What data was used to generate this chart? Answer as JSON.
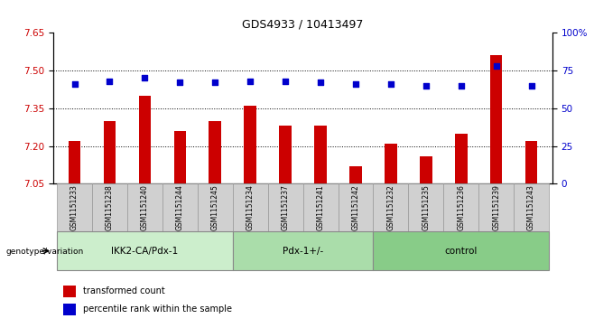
{
  "title": "GDS4933 / 10413497",
  "samples": [
    "GSM1151233",
    "GSM1151238",
    "GSM1151240",
    "GSM1151244",
    "GSM1151245",
    "GSM1151234",
    "GSM1151237",
    "GSM1151241",
    "GSM1151242",
    "GSM1151232",
    "GSM1151235",
    "GSM1151236",
    "GSM1151239",
    "GSM1151243"
  ],
  "bar_values": [
    7.22,
    7.3,
    7.4,
    7.26,
    7.3,
    7.36,
    7.28,
    7.28,
    7.12,
    7.21,
    7.16,
    7.25,
    7.56,
    7.22
  ],
  "percentile_values": [
    66,
    68,
    70,
    67,
    67,
    68,
    68,
    67,
    66,
    66,
    65,
    65,
    78,
    65
  ],
  "groups": [
    {
      "label": "IKK2-CA/Pdx-1",
      "start": 0,
      "end": 5,
      "color": "#cceecc"
    },
    {
      "label": "Pdx-1+/-",
      "start": 5,
      "end": 9,
      "color": "#aaddaa"
    },
    {
      "label": "control",
      "start": 9,
      "end": 14,
      "color": "#88cc88"
    }
  ],
  "ylim_left": [
    7.05,
    7.65
  ],
  "ylim_right": [
    0,
    100
  ],
  "yticks_left": [
    7.05,
    7.2,
    7.35,
    7.5,
    7.65
  ],
  "yticks_right": [
    0,
    25,
    50,
    75,
    100
  ],
  "bar_color": "#cc0000",
  "dot_color": "#0000cc",
  "background_color": "#ffffff",
  "grid_color": "#000000",
  "xlabel_color": "#cc0000",
  "ylabel_right_color": "#0000cc",
  "legend_items": [
    "transformed count",
    "percentile rank within the sample"
  ],
  "legend_colors": [
    "#cc0000",
    "#0000cc"
  ],
  "genotype_label": "genotype/variation",
  "bar_width": 0.35,
  "dot_size": 20
}
